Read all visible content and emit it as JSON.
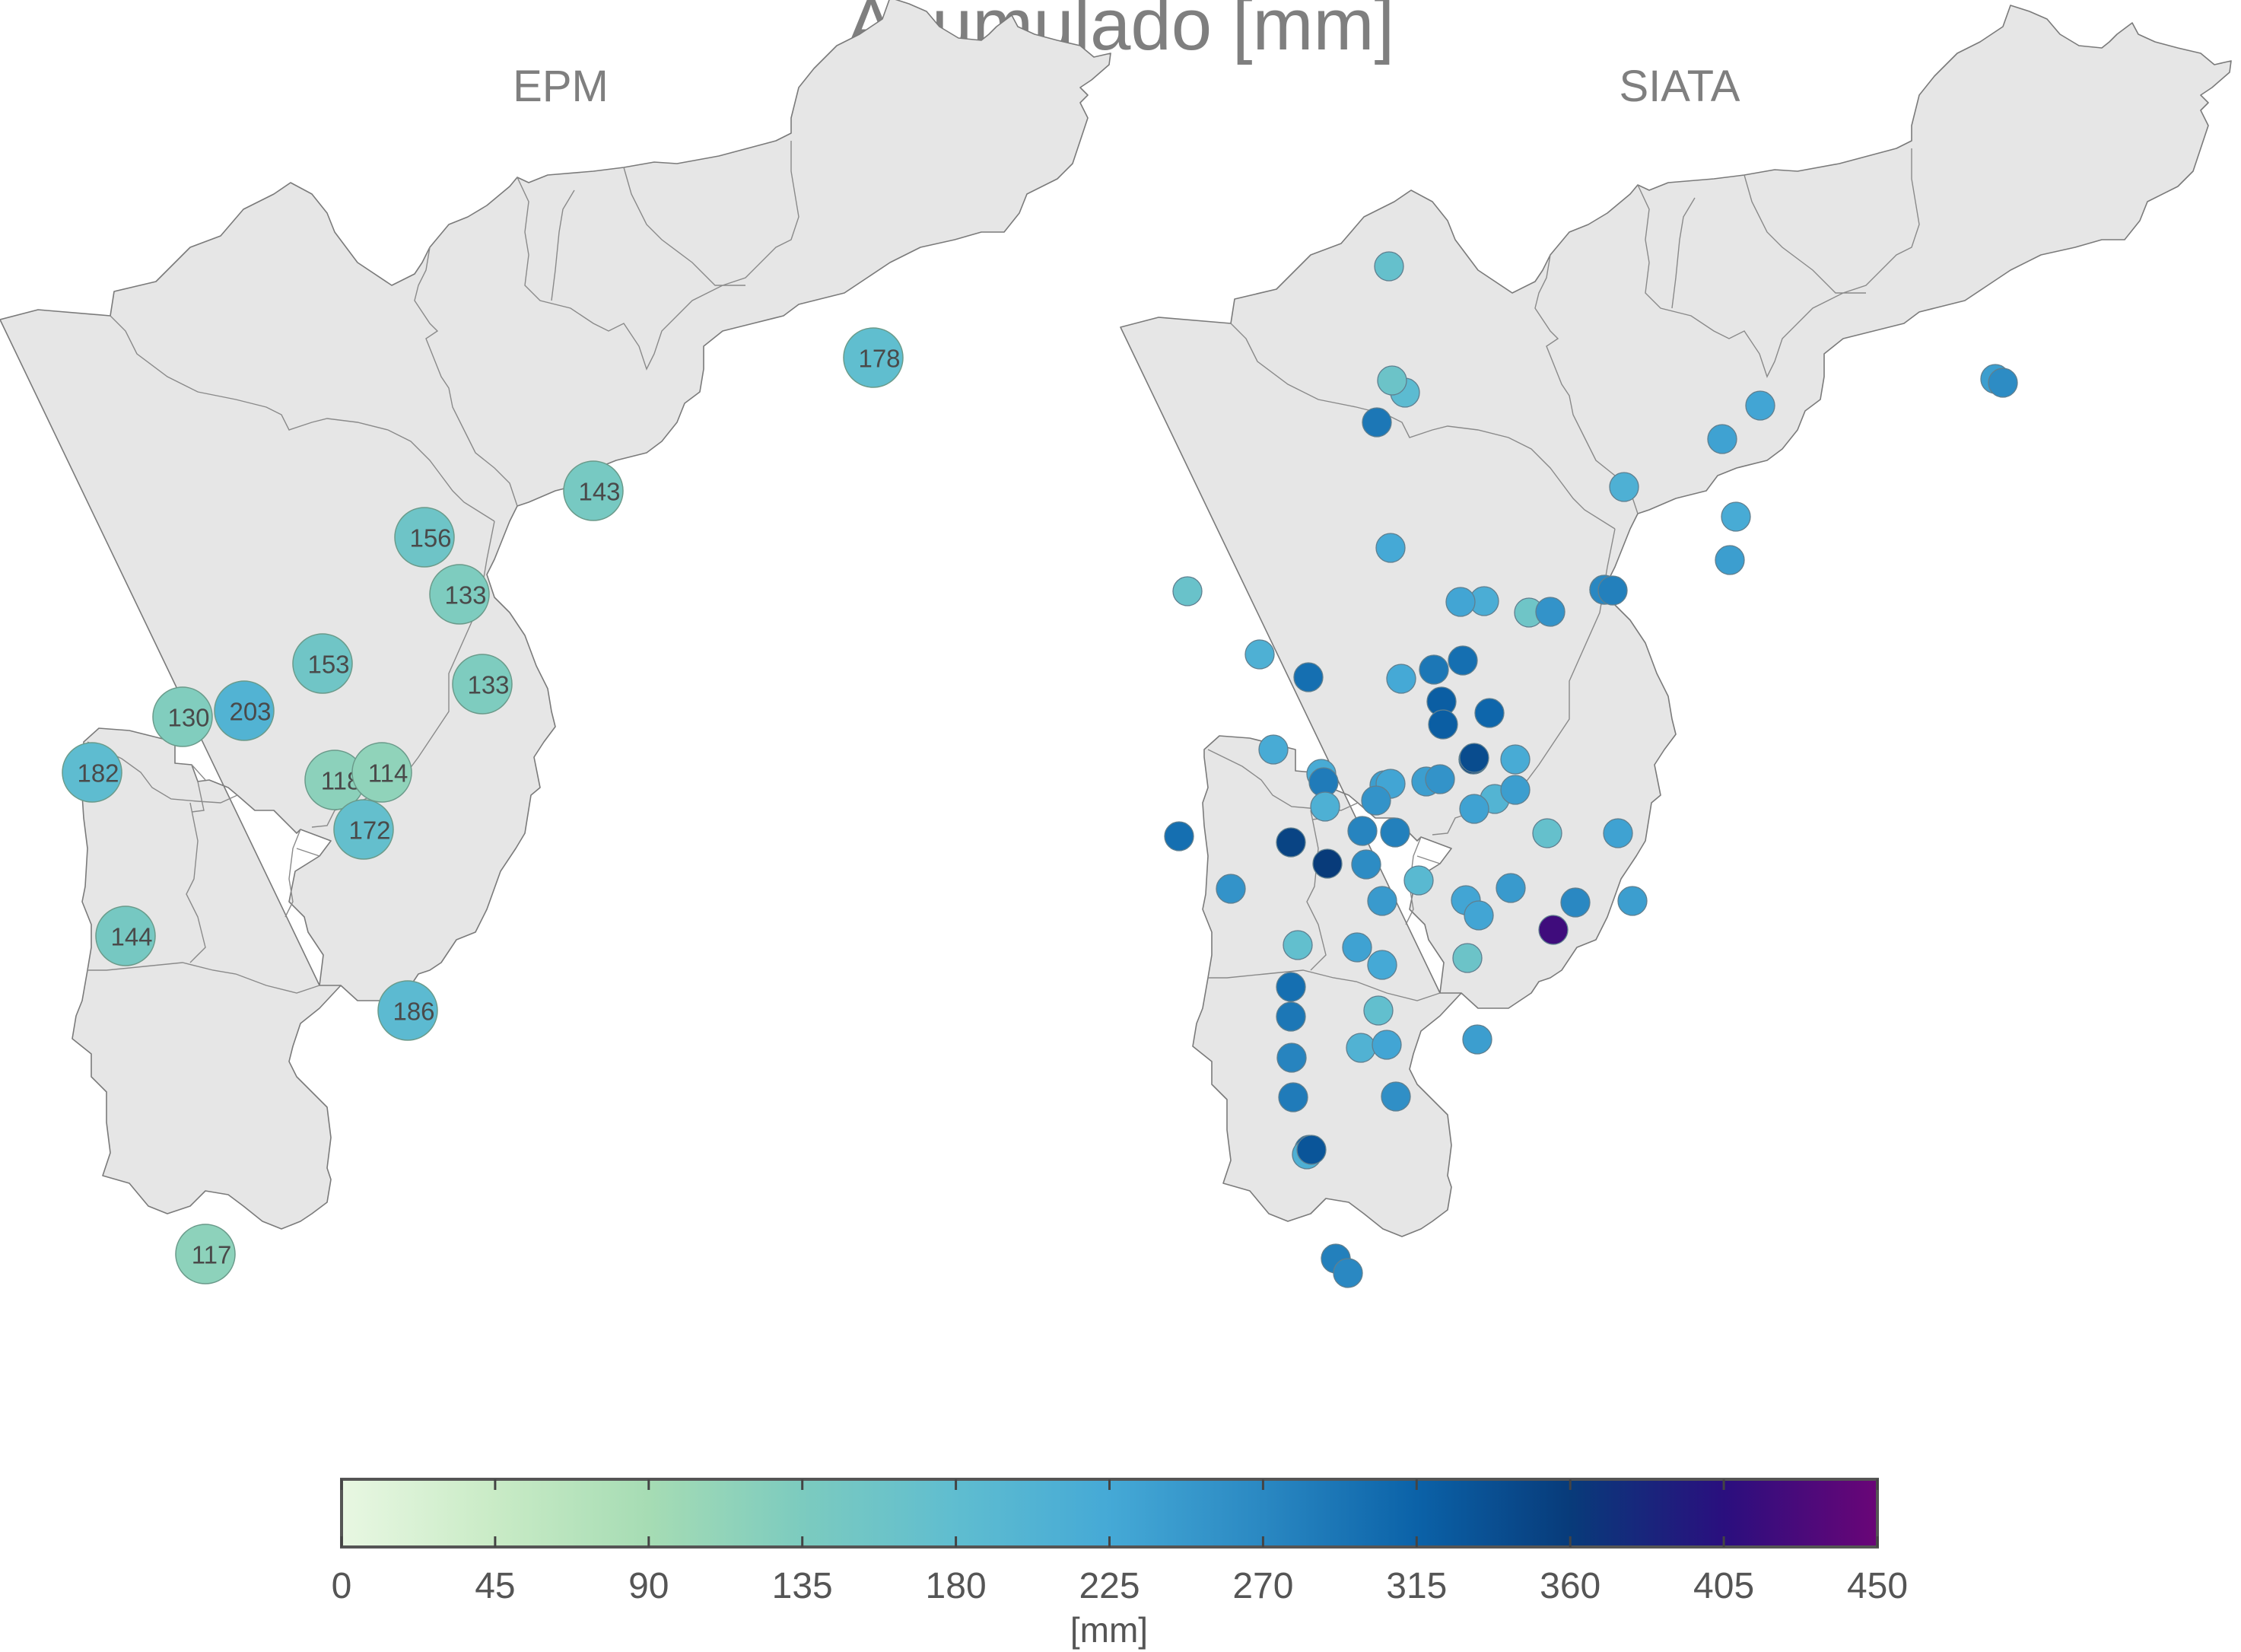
{
  "title": "Acumulado [mm]",
  "panels": {
    "left_title": "EPM",
    "right_title": "SIATA"
  },
  "colorbar": {
    "colormap": "GnBu-like (light green → teal → blue → dark blue → purple)",
    "colors": [
      "#e8f7e2",
      "#c9ebc6",
      "#a6dcb4",
      "#7ccbbf",
      "#5fbdd0",
      "#45a9d6",
      "#2a88c2",
      "#0b62a8",
      "#083b7a",
      "#2a0f7e",
      "#6a0577"
    ],
    "min": 0,
    "max": 450,
    "ticks": [
      "0",
      "45",
      "90",
      "135",
      "180",
      "225",
      "270",
      "315",
      "360",
      "405",
      "450"
    ],
    "label": "[mm]"
  },
  "epm_stations": [
    {
      "value": 178,
      "label": "178"
    },
    {
      "value": 143,
      "label": "143"
    },
    {
      "value": 156,
      "label": "156"
    },
    {
      "value": 133,
      "label": "133"
    },
    {
      "value": 133,
      "label": "133"
    },
    {
      "value": 153,
      "label": "153"
    },
    {
      "value": 130,
      "label": "130"
    },
    {
      "value": 203,
      "label": "203"
    },
    {
      "value": 182,
      "label": "182"
    },
    {
      "value": 118,
      "label": "118"
    },
    {
      "value": 114,
      "label": "114"
    },
    {
      "value": 172,
      "label": "172"
    },
    {
      "value": 144,
      "label": "144"
    },
    {
      "value": 186,
      "label": "186"
    },
    {
      "value": 117,
      "label": "117"
    }
  ],
  "siata_stations": [
    {
      "value": 185
    },
    {
      "value": 170
    },
    {
      "value": 290
    },
    {
      "value": 160
    },
    {
      "value": 240
    },
    {
      "value": 265
    },
    {
      "value": 230
    },
    {
      "value": 235
    },
    {
      "value": 220
    },
    {
      "value": 210
    },
    {
      "value": 240
    },
    {
      "value": 280
    },
    {
      "value": 225
    },
    {
      "value": 215
    },
    {
      "value": 155
    },
    {
      "value": 165
    },
    {
      "value": 270
    },
    {
      "value": 230
    },
    {
      "value": 280
    },
    {
      "value": 255
    },
    {
      "value": 210
    },
    {
      "value": 300
    },
    {
      "value": 290
    },
    {
      "value": 225
    },
    {
      "value": 300
    },
    {
      "value": 320
    },
    {
      "value": 220
    },
    {
      "value": 320
    },
    {
      "value": 220
    },
    {
      "value": 285
    },
    {
      "value": 240
    },
    {
      "value": 220
    },
    {
      "value": 310
    },
    {
      "value": 320
    },
    {
      "value": 240
    },
    {
      "value": 355
    },
    {
      "value": 230
    },
    {
      "value": 210
    },
    {
      "value": 255
    },
    {
      "value": 255
    },
    {
      "value": 340
    },
    {
      "value": 200
    },
    {
      "value": 240
    },
    {
      "value": 170
    },
    {
      "value": 235
    },
    {
      "value": 300
    },
    {
      "value": 350
    },
    {
      "value": 360
    },
    {
      "value": 275
    },
    {
      "value": 280
    },
    {
      "value": 265
    },
    {
      "value": 235
    },
    {
      "value": 255
    },
    {
      "value": 190
    },
    {
      "value": 245
    },
    {
      "value": 230
    },
    {
      "value": 230
    },
    {
      "value": 245
    },
    {
      "value": 270
    },
    {
      "value": 240
    },
    {
      "value": 420
    },
    {
      "value": 175
    },
    {
      "value": 235
    },
    {
      "value": 225
    },
    {
      "value": 160
    },
    {
      "value": 300
    },
    {
      "value": 290
    },
    {
      "value": 175
    },
    {
      "value": 275
    },
    {
      "value": 205
    },
    {
      "value": 230
    },
    {
      "value": 240
    },
    {
      "value": 285
    },
    {
      "value": 260
    },
    {
      "value": 320
    },
    {
      "value": 210
    },
    {
      "value": 330
    },
    {
      "value": 280
    },
    {
      "value": 270
    }
  ]
}
